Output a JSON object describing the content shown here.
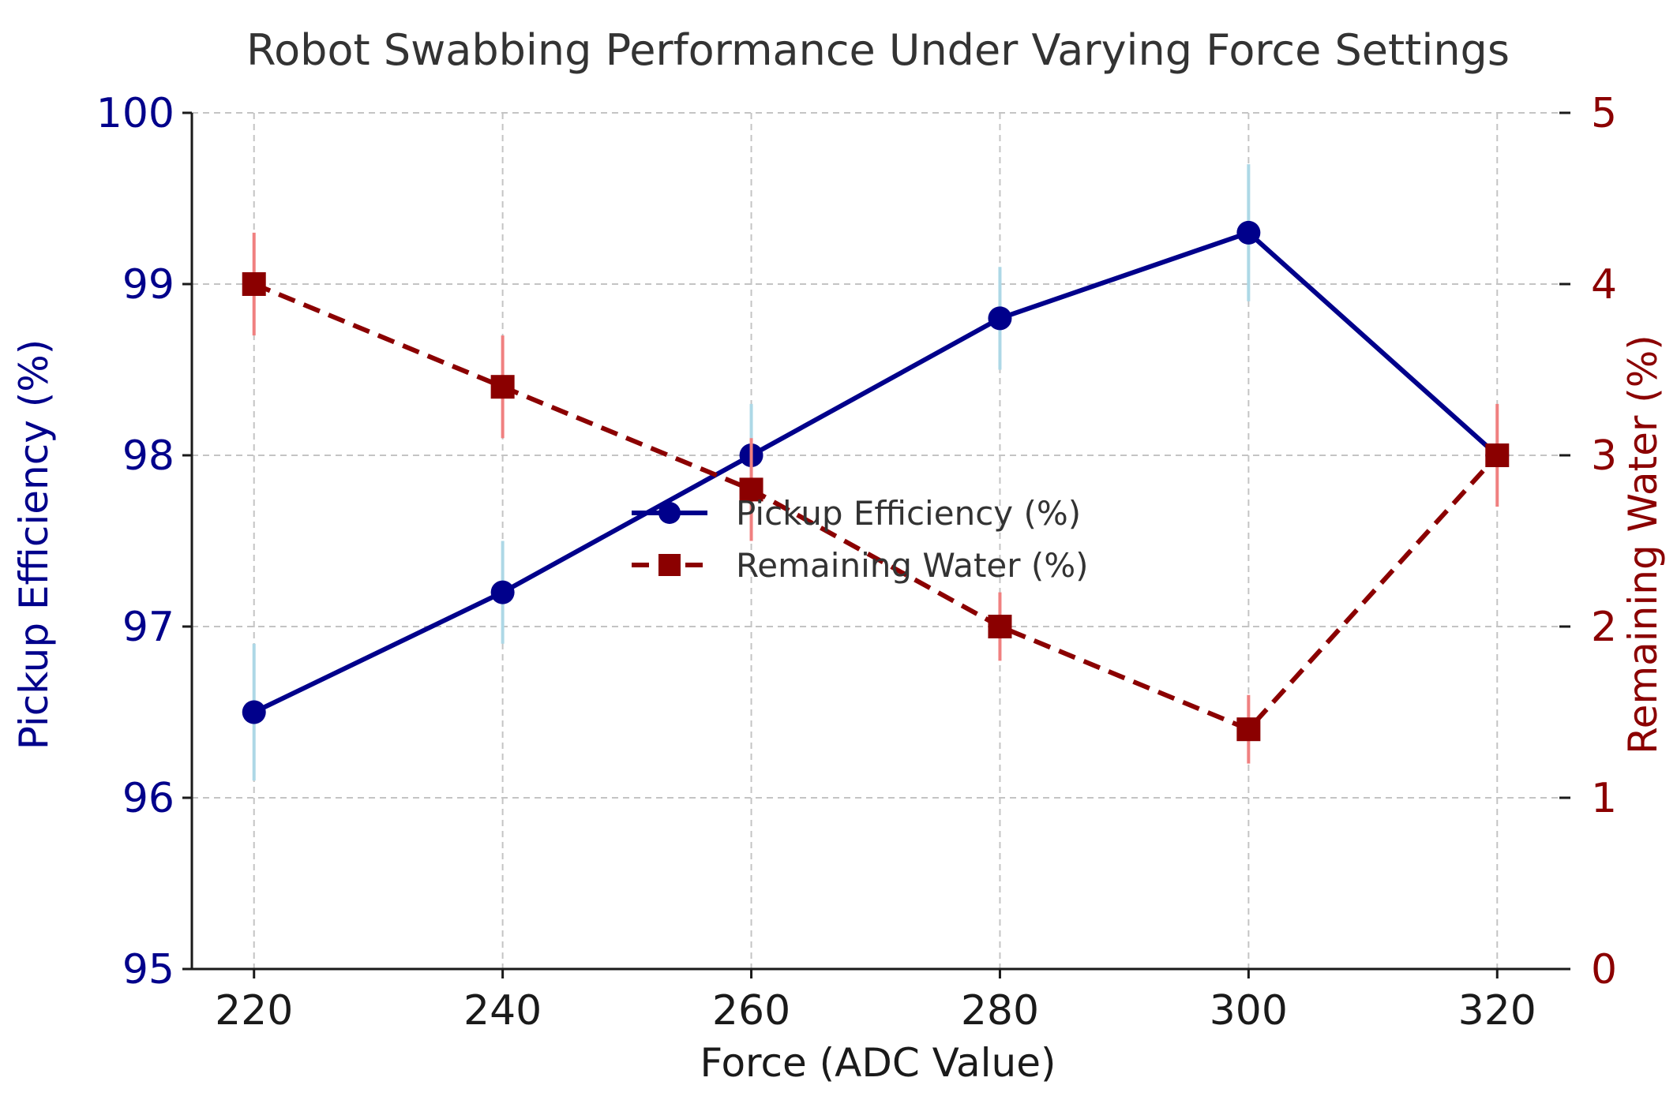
{
  "chart_data": {
    "type": "line",
    "title": "Robot Swabbing Performance Under Varying Force Settings",
    "xlabel": "Force (ADC Value)",
    "ylabel_left": "Pickup Efficiency (%)",
    "ylabel_right": "Remaining Water (%)",
    "x": [
      220,
      240,
      260,
      280,
      300,
      320
    ],
    "x_ticks": [
      "220",
      "240",
      "260",
      "280",
      "300",
      "320"
    ],
    "xlim": [
      215,
      325
    ],
    "ylim_left": [
      95,
      100
    ],
    "ylim_right": [
      0,
      5
    ],
    "y_ticks_left": [
      "95",
      "96",
      "97",
      "98",
      "99",
      "100"
    ],
    "y_ticks_right": [
      "0",
      "1",
      "2",
      "3",
      "4",
      "5"
    ],
    "grid": true,
    "legend_position": "center",
    "series": [
      {
        "name": "Pickup Efficiency (%)",
        "axis": "left",
        "values": [
          96.5,
          97.2,
          98.0,
          98.8,
          99.3,
          98.0
        ],
        "errors": [
          0.4,
          0.3,
          0.3,
          0.3,
          0.4,
          0.0
        ],
        "line_color": "#00008b",
        "error_color": "#add8e6",
        "marker": "circle",
        "line_style": "solid"
      },
      {
        "name": "Remaining Water (%)",
        "axis": "right",
        "values": [
          4.0,
          3.4,
          2.8,
          2.0,
          1.4,
          3.0
        ],
        "errors": [
          0.3,
          0.3,
          0.3,
          0.2,
          0.2,
          0.3
        ],
        "line_color": "#8b0000",
        "error_color": "#f08080",
        "marker": "square",
        "line_style": "dashed"
      }
    ],
    "left_axis_color": "#00008b",
    "right_axis_color": "#8b0000"
  }
}
